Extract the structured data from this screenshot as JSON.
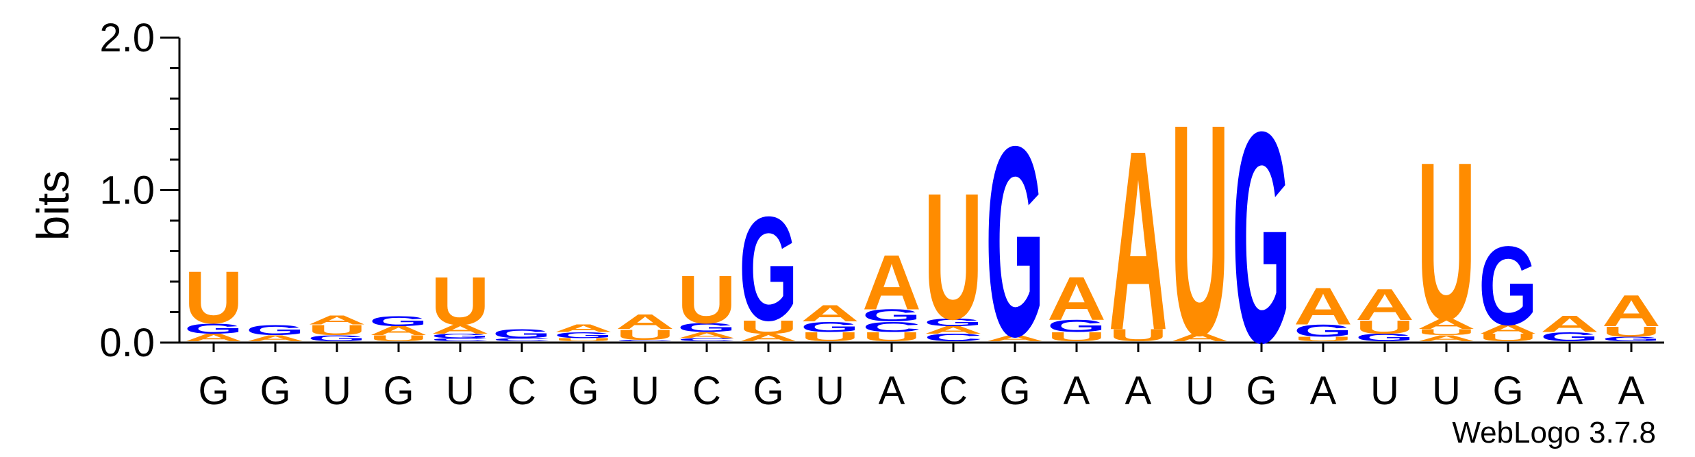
{
  "chart_data": {
    "type": "sequence-logo",
    "ylabel": "bits",
    "ylim": [
      0,
      2.0
    ],
    "yticks": [
      "0.0",
      "1.0",
      "2.0"
    ],
    "colors": {
      "U": "#ff8c00",
      "A": "#ff8c00",
      "G": "#0000ff",
      "C": "#0000ff"
    },
    "positions": [
      {
        "label": "G",
        "stack": [
          [
            "A",
            0.05
          ],
          [
            "G",
            0.07
          ],
          [
            "U",
            0.35
          ]
        ]
      },
      {
        "label": "G",
        "stack": [
          [
            "A",
            0.04
          ],
          [
            "G",
            0.07
          ]
        ]
      },
      {
        "label": "U",
        "stack": [
          [
            "G",
            0.04
          ],
          [
            "U",
            0.07
          ],
          [
            "A",
            0.06
          ]
        ]
      },
      {
        "label": "G",
        "stack": [
          [
            "U",
            0.04
          ],
          [
            "A",
            0.06
          ],
          [
            "G",
            0.07
          ]
        ]
      },
      {
        "label": "U",
        "stack": [
          [
            "C",
            0.02
          ],
          [
            "G",
            0.03
          ],
          [
            "A",
            0.06
          ],
          [
            "U",
            0.32
          ]
        ]
      },
      {
        "label": "C",
        "stack": [
          [
            "C",
            0.02
          ],
          [
            "G",
            0.06
          ]
        ]
      },
      {
        "label": "G",
        "stack": [
          [
            "U",
            0.02
          ],
          [
            "G",
            0.04
          ],
          [
            "A",
            0.05
          ]
        ]
      },
      {
        "label": "U",
        "stack": [
          [
            "C",
            0.01
          ],
          [
            "U",
            0.07
          ],
          [
            "A",
            0.1
          ]
        ]
      },
      {
        "label": "C",
        "stack": [
          [
            "C",
            0.02
          ],
          [
            "A",
            0.04
          ],
          [
            "G",
            0.06
          ],
          [
            "U",
            0.32
          ]
        ]
      },
      {
        "label": "G",
        "stack": [
          [
            "A",
            0.05
          ],
          [
            "U",
            0.09
          ],
          [
            "G",
            0.7
          ]
        ]
      },
      {
        "label": "U",
        "stack": [
          [
            "U",
            0.06
          ],
          [
            "G",
            0.07
          ],
          [
            "A",
            0.11
          ]
        ]
      },
      {
        "label": "A",
        "stack": [
          [
            "U",
            0.06
          ],
          [
            "C",
            0.07
          ],
          [
            "G",
            0.08
          ],
          [
            "A",
            0.37
          ]
        ]
      },
      {
        "label": "C",
        "stack": [
          [
            "C",
            0.05
          ],
          [
            "A",
            0.05
          ],
          [
            "G",
            0.05
          ],
          [
            "U",
            0.85
          ]
        ]
      },
      {
        "label": "G",
        "stack": [
          [
            "A",
            0.04
          ],
          [
            "G",
            1.28
          ]
        ]
      },
      {
        "label": "A",
        "stack": [
          [
            "U",
            0.06
          ],
          [
            "G",
            0.08
          ],
          [
            "A",
            0.29
          ]
        ]
      },
      {
        "label": "A",
        "stack": [
          [
            "U",
            0.08
          ],
          [
            "A",
            1.21
          ]
        ]
      },
      {
        "label": "U",
        "stack": [
          [
            "A",
            0.05
          ],
          [
            "U",
            1.42
          ]
        ]
      },
      {
        "label": "G",
        "stack": [
          [
            "G",
            1.42
          ]
        ]
      },
      {
        "label": "A",
        "stack": [
          [
            "U",
            0.03
          ],
          [
            "G",
            0.08
          ],
          [
            "A",
            0.25
          ]
        ]
      },
      {
        "label": "U",
        "stack": [
          [
            "G",
            0.05
          ],
          [
            "U",
            0.09
          ],
          [
            "A",
            0.21
          ]
        ]
      },
      {
        "label": "U",
        "stack": [
          [
            "A",
            0.04
          ],
          [
            "U",
            0.04
          ],
          [
            "A",
            0.07
          ],
          [
            "U",
            1.06
          ]
        ]
      },
      {
        "label": "G",
        "stack": [
          [
            "U",
            0.05
          ],
          [
            "A",
            0.06
          ],
          [
            "G",
            0.53
          ]
        ]
      },
      {
        "label": "A",
        "stack": [
          [
            "G",
            0.06
          ],
          [
            "A",
            0.11
          ]
        ]
      },
      {
        "label": "A",
        "stack": [
          [
            "G",
            0.03
          ],
          [
            "U",
            0.07
          ],
          [
            "A",
            0.21
          ]
        ]
      }
    ],
    "watermark": "WebLogo 3.7.8"
  }
}
